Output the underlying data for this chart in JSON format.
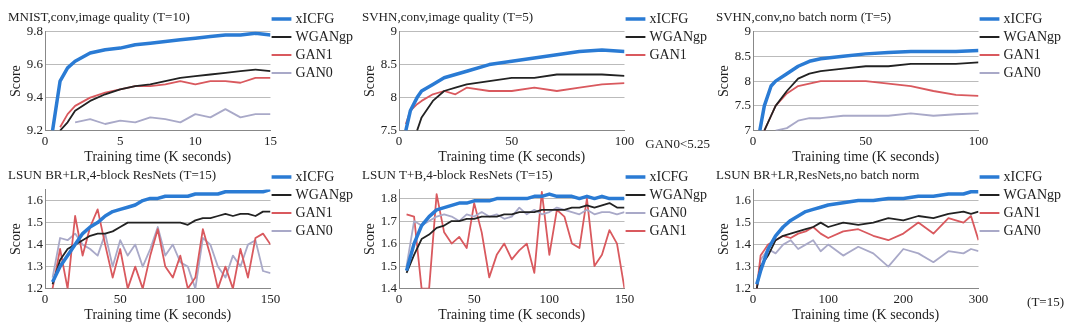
{
  "chart_data": [
    {
      "type": "line",
      "title": "MNIST,conv,image quality (T=10)",
      "xlabel": "Training time (K seconds)",
      "ylabel": "Score",
      "x": [
        0.5,
        1,
        1.5,
        2,
        3,
        4,
        5,
        6,
        7,
        8,
        9,
        10,
        11,
        12,
        13,
        14,
        15
      ],
      "xlim": [
        0,
        15
      ],
      "xticks": [
        0,
        5,
        10,
        15
      ],
      "ylim": [
        9.2,
        9.8
      ],
      "yticks": [
        9.2,
        9.4,
        9.6,
        9.8
      ],
      "grid": "y",
      "legend": "right",
      "marker": "none",
      "line_style": "solid",
      "series": [
        {
          "name": "xICFG",
          "color": "#2a7bd4",
          "values": [
            9.2,
            9.5,
            9.58,
            9.62,
            9.67,
            9.69,
            9.7,
            9.72,
            9.73,
            9.74,
            9.75,
            9.76,
            9.77,
            9.78,
            9.78,
            9.79,
            9.78
          ]
        },
        {
          "name": "WGANgp",
          "color": "#222222",
          "values": [
            null,
            9.2,
            9.25,
            9.32,
            9.38,
            9.42,
            9.45,
            9.47,
            9.48,
            9.5,
            9.52,
            9.53,
            9.54,
            9.55,
            9.56,
            9.57,
            9.56
          ]
        },
        {
          "name": "GAN1",
          "color": "#d9595e",
          "values": [
            null,
            9.22,
            9.3,
            9.35,
            9.4,
            9.43,
            9.45,
            9.47,
            9.47,
            9.48,
            9.5,
            9.48,
            9.5,
            9.5,
            9.49,
            9.52,
            9.52
          ]
        },
        {
          "name": "GAN0",
          "color": "#a9a9c8",
          "values": [
            null,
            null,
            null,
            9.25,
            9.27,
            9.24,
            9.26,
            9.25,
            9.28,
            9.27,
            9.25,
            9.3,
            9.28,
            9.33,
            9.28,
            9.3,
            9.3
          ]
        }
      ]
    },
    {
      "type": "line",
      "title": "SVHN,conv,image quality (T=5)",
      "xlabel": "Training time (K seconds)",
      "ylabel": "Score",
      "annotations": [
        "GAN0<5.25"
      ],
      "x": [
        3,
        5,
        8,
        10,
        15,
        20,
        25,
        30,
        40,
        50,
        60,
        70,
        80,
        90,
        100
      ],
      "xlim": [
        0,
        100
      ],
      "xticks": [
        0,
        50,
        100
      ],
      "ylim": [
        7.5,
        9
      ],
      "yticks": [
        7.5,
        8,
        8.5,
        9
      ],
      "grid": "y",
      "legend": "right",
      "marker": "none",
      "line_style": "solid",
      "series": [
        {
          "name": "xICFG",
          "color": "#2a7bd4",
          "values": [
            7.5,
            7.8,
            8.0,
            8.1,
            8.2,
            8.3,
            8.35,
            8.4,
            8.5,
            8.55,
            8.6,
            8.65,
            8.7,
            8.72,
            8.7
          ]
        },
        {
          "name": "WGANgp",
          "color": "#222222",
          "values": [
            null,
            null,
            7.5,
            7.7,
            7.95,
            8.1,
            8.15,
            8.2,
            8.25,
            8.3,
            8.3,
            8.35,
            8.35,
            8.35,
            8.33
          ]
        },
        {
          "name": "GAN1",
          "color": "#d9595e",
          "values": [
            7.6,
            7.8,
            7.9,
            7.95,
            8.05,
            8.1,
            8.05,
            8.15,
            8.1,
            8.1,
            8.15,
            8.1,
            8.15,
            8.2,
            8.22
          ]
        }
      ]
    },
    {
      "type": "line",
      "title": "SVHN,conv,no batch norm (T=5)",
      "xlabel": "Training time (K seconds)",
      "ylabel": "Score",
      "x": [
        3,
        5,
        8,
        10,
        15,
        20,
        25,
        30,
        40,
        50,
        60,
        70,
        80,
        90,
        100
      ],
      "xlim": [
        0,
        100
      ],
      "xticks": [
        0,
        50,
        100
      ],
      "ylim": [
        7,
        9
      ],
      "yticks": [
        7,
        7.5,
        8,
        8.5,
        9
      ],
      "grid": "y",
      "legend": "right",
      "marker": "none",
      "line_style": "solid",
      "series": [
        {
          "name": "xICFG",
          "color": "#2a7bd4",
          "values": [
            7,
            7.5,
            7.9,
            8.0,
            8.15,
            8.3,
            8.4,
            8.45,
            8.5,
            8.55,
            8.58,
            8.6,
            8.6,
            8.6,
            8.62
          ]
        },
        {
          "name": "WGANgp",
          "color": "#222222",
          "values": [
            null,
            7,
            7.3,
            7.5,
            7.8,
            8.05,
            8.15,
            8.2,
            8.25,
            8.3,
            8.3,
            8.35,
            8.35,
            8.35,
            8.38
          ]
        },
        {
          "name": "GAN1",
          "color": "#d9595e",
          "values": [
            null,
            7,
            7.3,
            7.5,
            7.75,
            7.9,
            7.95,
            8.0,
            8.0,
            8.0,
            7.95,
            7.9,
            7.8,
            7.72,
            7.7
          ]
        },
        {
          "name": "GAN0",
          "color": "#a9a9c8",
          "values": [
            null,
            null,
            null,
            7,
            7.05,
            7.2,
            7.25,
            7.25,
            7.3,
            7.3,
            7.3,
            7.35,
            7.3,
            7.33,
            7.35
          ]
        }
      ]
    },
    {
      "type": "line",
      "title": "LSUN BR+LR,4-block ResNets (T=15)",
      "xlabel": "Training time (K seconds)",
      "ylabel": "Score",
      "x": [
        5,
        10,
        15,
        20,
        25,
        30,
        35,
        40,
        45,
        50,
        55,
        60,
        65,
        70,
        75,
        80,
        85,
        90,
        95,
        100,
        105,
        110,
        115,
        120,
        125,
        130,
        135,
        140,
        145,
        150
      ],
      "xlim": [
        0,
        150
      ],
      "xticks": [
        0,
        50,
        100,
        150
      ],
      "ylim": [
        1.2,
        1.65
      ],
      "yticks": [
        1.2,
        1.3,
        1.4,
        1.5,
        1.6
      ],
      "grid": "y",
      "legend": "right",
      "marker": "none",
      "line_style": "solid",
      "series": [
        {
          "name": "xICFG",
          "color": "#2a7bd4",
          "values": [
            1.23,
            1.3,
            1.35,
            1.4,
            1.45,
            1.48,
            1.5,
            1.53,
            1.55,
            1.56,
            1.57,
            1.58,
            1.6,
            1.61,
            1.61,
            1.62,
            1.62,
            1.62,
            1.62,
            1.63,
            1.63,
            1.63,
            1.63,
            1.64,
            1.64,
            1.64,
            1.64,
            1.64,
            1.64,
            1.65
          ]
        },
        {
          "name": "WGANgp",
          "color": "#222222",
          "values": [
            1.22,
            1.33,
            1.38,
            1.4,
            1.42,
            1.44,
            1.45,
            1.45,
            1.46,
            1.48,
            1.5,
            1.5,
            1.5,
            1.5,
            1.5,
            1.5,
            1.5,
            1.5,
            1.49,
            1.51,
            1.52,
            1.52,
            1.53,
            1.54,
            1.53,
            1.54,
            1.54,
            1.53,
            1.55,
            1.55
          ]
        },
        {
          "name": "GAN1",
          "color": "#d9595e",
          "values": [
            1.2,
            1.38,
            1.2,
            1.53,
            1.35,
            1.48,
            1.56,
            1.4,
            1.25,
            1.38,
            1.2,
            1.3,
            1.2,
            1.35,
            1.47,
            1.3,
            1.25,
            1.35,
            1.2,
            1.25,
            1.47,
            1.35,
            1.2,
            1.3,
            1.2,
            1.38,
            1.25,
            1.43,
            1.45,
            1.4
          ]
        },
        {
          "name": "GAN0",
          "color": "#a9a9c8",
          "values": [
            1.25,
            1.43,
            1.42,
            1.45,
            1.4,
            1.38,
            1.35,
            1.45,
            1.3,
            1.42,
            1.35,
            1.4,
            1.3,
            1.38,
            1.48,
            1.35,
            1.4,
            1.32,
            1.3,
            1.2,
            1.43,
            1.4,
            1.3,
            1.25,
            1.35,
            1.3,
            1.4,
            1.42,
            1.28,
            1.27
          ]
        }
      ]
    },
    {
      "type": "line",
      "title": "LSUN T+B,4-block ResNets (T=15)",
      "xlabel": "Training time (K seconds)",
      "ylabel": "Score",
      "x": [
        5,
        10,
        15,
        20,
        25,
        30,
        35,
        40,
        45,
        50,
        55,
        60,
        65,
        70,
        75,
        80,
        85,
        90,
        95,
        100,
        105,
        110,
        115,
        120,
        125,
        130,
        135,
        140,
        145,
        150
      ],
      "xlim": [
        0,
        150
      ],
      "xticks": [
        0,
        50,
        100,
        150
      ],
      "ylim": [
        1.4,
        1.84
      ],
      "yticks": [
        1.4,
        1.5,
        1.6,
        1.7,
        1.8
      ],
      "grid": "y",
      "legend": "right",
      "marker": "none",
      "line_style": "solid",
      "series": [
        {
          "name": "xICFG",
          "color": "#2a7bd4",
          "values": [
            1.48,
            1.6,
            1.68,
            1.72,
            1.75,
            1.76,
            1.77,
            1.78,
            1.78,
            1.79,
            1.79,
            1.79,
            1.8,
            1.8,
            1.8,
            1.8,
            1.8,
            1.81,
            1.81,
            1.82,
            1.81,
            1.81,
            1.81,
            1.8,
            1.81,
            1.8,
            1.81,
            1.8,
            1.8,
            1.8
          ]
        },
        {
          "name": "WGANgp",
          "color": "#222222",
          "values": [
            1.47,
            1.55,
            1.62,
            1.64,
            1.67,
            1.68,
            1.7,
            1.7,
            1.71,
            1.71,
            1.72,
            1.72,
            1.72,
            1.73,
            1.73,
            1.74,
            1.74,
            1.74,
            1.75,
            1.75,
            1.75,
            1.75,
            1.76,
            1.76,
            1.77,
            1.76,
            1.77,
            1.78,
            1.76,
            1.76
          ]
        },
        {
          "name": "GAN0",
          "color": "#a9a9c8",
          "values": [
            1.5,
            1.7,
            1.68,
            1.7,
            1.72,
            1.73,
            1.72,
            1.7,
            1.73,
            1.72,
            1.74,
            1.72,
            1.73,
            1.71,
            1.72,
            1.76,
            1.73,
            1.75,
            1.73,
            1.74,
            1.76,
            1.75,
            1.74,
            1.73,
            1.75,
            1.73,
            1.74,
            1.74,
            1.73,
            1.74
          ]
        },
        {
          "name": "GAN1",
          "color": "#d9595e",
          "values": [
            1.73,
            1.72,
            1.4,
            1.4,
            1.82,
            1.65,
            1.6,
            1.63,
            1.58,
            1.78,
            1.65,
            1.45,
            1.55,
            1.6,
            1.53,
            1.57,
            1.6,
            1.47,
            1.83,
            1.55,
            1.75,
            1.72,
            1.6,
            1.58,
            1.8,
            1.5,
            1.55,
            1.66,
            1.6,
            1.4
          ]
        }
      ]
    },
    {
      "type": "line",
      "title": "LSUN BR+LR,ResNets,no batch norm",
      "xlabel": "Training time (K seconds)",
      "ylabel": "Score",
      "annotations": [
        "(T=15)"
      ],
      "x": [
        5,
        10,
        20,
        30,
        40,
        50,
        60,
        70,
        80,
        90,
        100,
        120,
        140,
        160,
        180,
        200,
        220,
        240,
        260,
        280,
        290,
        300
      ],
      "xlim": [
        0,
        300
      ],
      "xticks": [
        0,
        100,
        200,
        300
      ],
      "ylim": [
        1.2,
        1.65
      ],
      "yticks": [
        1.2,
        1.3,
        1.4,
        1.5,
        1.6
      ],
      "grid": "y",
      "legend": "right",
      "marker": "none",
      "line_style": "solid",
      "series": [
        {
          "name": "xICFG",
          "color": "#2a7bd4",
          "values": [
            1.22,
            1.28,
            1.38,
            1.44,
            1.48,
            1.51,
            1.53,
            1.55,
            1.56,
            1.57,
            1.58,
            1.59,
            1.6,
            1.6,
            1.61,
            1.61,
            1.62,
            1.62,
            1.63,
            1.63,
            1.64,
            1.64
          ]
        },
        {
          "name": "WGANgp",
          "color": "#222222",
          "values": [
            1.2,
            1.3,
            1.35,
            1.42,
            1.44,
            1.45,
            1.46,
            1.47,
            1.48,
            1.5,
            1.48,
            1.5,
            1.49,
            1.5,
            1.52,
            1.51,
            1.53,
            1.52,
            1.54,
            1.55,
            1.54,
            1.55
          ]
        },
        {
          "name": "GAN1",
          "color": "#d9595e",
          "values": [
            1.2,
            1.35,
            1.4,
            1.42,
            1.44,
            1.43,
            1.45,
            1.46,
            1.48,
            1.45,
            1.43,
            1.46,
            1.47,
            1.44,
            1.42,
            1.45,
            1.5,
            1.45,
            1.52,
            1.5,
            1.53,
            1.42
          ]
        },
        {
          "name": "GAN0",
          "color": "#a9a9c8",
          "values": [
            1.2,
            1.33,
            1.38,
            1.36,
            1.4,
            1.42,
            1.38,
            1.4,
            1.42,
            1.37,
            1.4,
            1.35,
            1.39,
            1.36,
            1.3,
            1.38,
            1.36,
            1.32,
            1.37,
            1.36,
            1.38,
            1.37
          ]
        }
      ]
    }
  ]
}
